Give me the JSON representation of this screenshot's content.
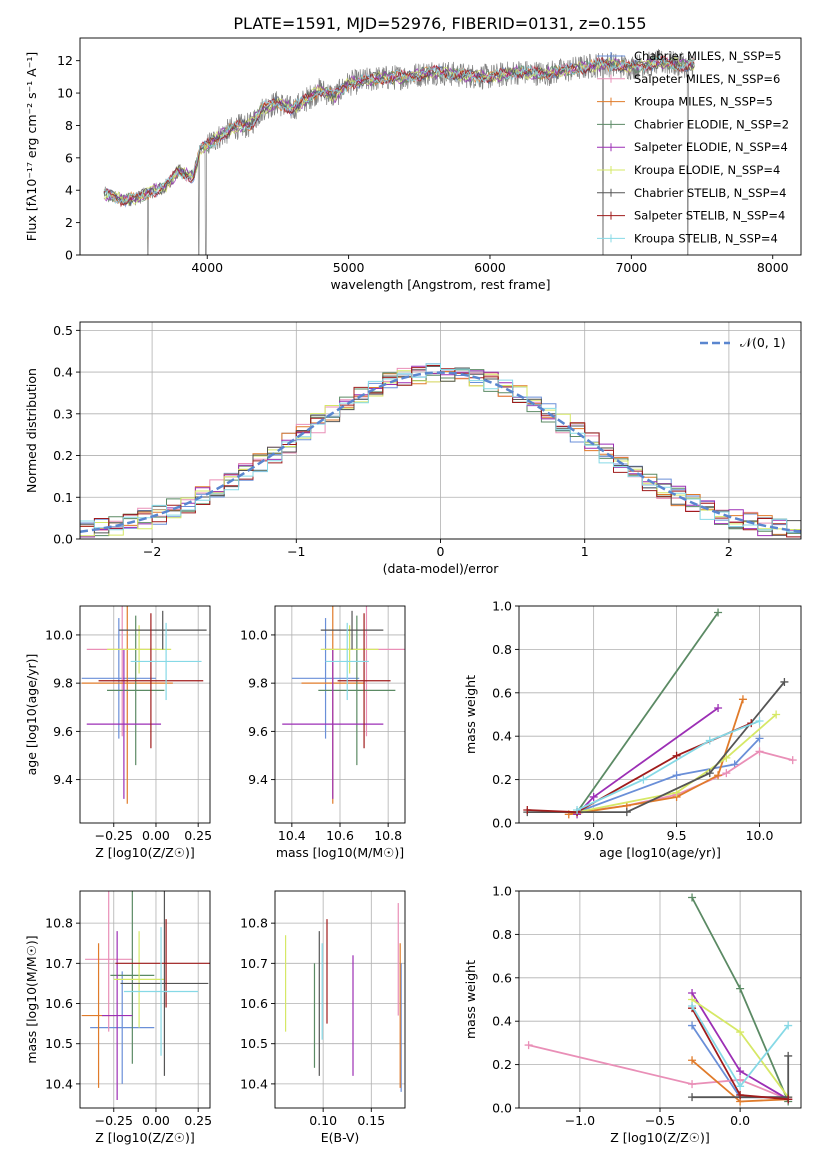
{
  "figure": {
    "title": "PLATE=1591, MJD=52976, FIBERID=0131, z=0.155"
  },
  "series_colors": [
    "#6a8fd8",
    "#e98fb7",
    "#e07b2a",
    "#5b8a64",
    "#9c2fb5",
    "#d6e866",
    "#555555",
    "#a01c1c",
    "#86d9e6"
  ],
  "chart_data": [
    {
      "id": "spectrum",
      "type": "line",
      "xlabel": "wavelength [Angstrom, rest frame]",
      "ylabel": "Flux [fλ10⁻¹⁷ erg cm⁻² s⁻¹ A⁻¹]",
      "xlim": [
        3100,
        8200
      ],
      "ylim": [
        0,
        13.4
      ],
      "xticks": [
        4000,
        5000,
        6000,
        7000,
        8000
      ],
      "yticks": [
        0,
        2,
        4,
        6,
        8,
        10,
        12
      ],
      "grid": false,
      "legend_position": "top-right",
      "data_color": "#808080",
      "data_x": [
        3270,
        3400,
        3500,
        3600,
        3700,
        3800,
        3900,
        3950,
        4000,
        4100,
        4200,
        4300,
        4400,
        4500,
        4600,
        4700,
        4800,
        4900,
        5000,
        5200,
        5400,
        5600,
        5800,
        6000,
        6200,
        6400,
        6600,
        6800,
        7000,
        7200,
        7400,
        7450
      ],
      "data_y": [
        3.8,
        3.4,
        3.5,
        3.9,
        4.2,
        5.2,
        4.8,
        6.5,
        6.8,
        7.4,
        7.9,
        8.0,
        9.1,
        9.4,
        9.0,
        9.6,
        10.2,
        9.8,
        10.6,
        10.9,
        11.0,
        11.3,
        11.1,
        11.0,
        11.3,
        11.2,
        11.5,
        11.8,
        11.6,
        11.9,
        11.7,
        11.8
      ],
      "series": [
        {
          "name": "Chabrier MILES, N_SSP=5"
        },
        {
          "name": "Salpeter MILES, N_SSP=6"
        },
        {
          "name": "Kroupa MILES, N_SSP=5"
        },
        {
          "name": "Chabrier ELODIE, N_SSP=2"
        },
        {
          "name": "Salpeter ELODIE, N_SSP=4"
        },
        {
          "name": "Kroupa ELODIE, N_SSP=4"
        },
        {
          "name": "Chabrier STELIB, N_SSP=4"
        },
        {
          "name": "Salpeter STELIB, N_SSP=4"
        },
        {
          "name": "Kroupa STELIB, N_SSP=4"
        }
      ]
    },
    {
      "id": "residual-histogram",
      "type": "bar",
      "xlabel": "(data-model)/error",
      "ylabel": "Normed distribution",
      "xlim": [
        -2.5,
        2.5
      ],
      "ylim": [
        0,
        0.52
      ],
      "xticks": [
        -2,
        -1,
        0,
        1,
        2
      ],
      "yticks": [
        0.0,
        0.1,
        0.2,
        0.3,
        0.4,
        0.5
      ],
      "grid": true,
      "legend_position": "top-right",
      "legend_label": "𝒩(0, 1)",
      "bin_width": 0.1,
      "bin_start": -2.5
    },
    {
      "id": "age-vs-Z",
      "type": "scatter",
      "xlabel": "Z [log10(Z/Z☉)]",
      "ylabel": "age  [log10(age/yr)]",
      "xlim": [
        -0.45,
        0.32
      ],
      "ylim": [
        9.22,
        10.12
      ],
      "xticks": [
        -0.25,
        0.0,
        0.25
      ],
      "yticks": [
        9.4,
        9.6,
        9.8,
        10.0
      ],
      "grid": true,
      "points": [
        {
          "x": -0.22,
          "y": 9.82,
          "xerr": 0.22,
          "yerr": 0.25
        },
        {
          "x": -0.2,
          "y": 9.94,
          "xerr": 0.21,
          "yerr": 0.36
        },
        {
          "x": -0.17,
          "y": 9.8,
          "xerr": 0.27,
          "yerr": 0.5
        },
        {
          "x": -0.12,
          "y": 9.77,
          "xerr": 0.17,
          "yerr": 0.31
        },
        {
          "x": -0.19,
          "y": 9.63,
          "xerr": 0.22,
          "yerr": 0.31
        },
        {
          "x": -0.1,
          "y": 9.94,
          "xerr": 0.19,
          "yerr": 0.1
        },
        {
          "x": 0.04,
          "y": 10.02,
          "xerr": 0.26,
          "yerr": 0.08
        },
        {
          "x": -0.03,
          "y": 9.81,
          "xerr": 0.31,
          "yerr": 0.28
        },
        {
          "x": 0.06,
          "y": 9.89,
          "xerr": 0.21,
          "yerr": 0.16
        }
      ]
    },
    {
      "id": "age-vs-mass",
      "type": "scatter",
      "xlabel": "mass [log10(M/M☉)]",
      "ylabel": "",
      "xlim": [
        10.33,
        10.87
      ],
      "ylim": [
        9.22,
        10.12
      ],
      "xticks": [
        10.4,
        10.6,
        10.8
      ],
      "yticks": [
        9.4,
        9.6,
        9.8,
        10.0
      ],
      "grid": true,
      "points": [
        {
          "x": 10.54,
          "y": 9.82,
          "xerr": 0.14,
          "yerr": 0.25
        },
        {
          "x": 10.71,
          "y": 9.94,
          "xerr": 0.18,
          "yerr": 0.36
        },
        {
          "x": 10.57,
          "y": 9.8,
          "xerr": 0.13,
          "yerr": 0.5
        },
        {
          "x": 10.67,
          "y": 9.77,
          "xerr": 0.16,
          "yerr": 0.31
        },
        {
          "x": 10.57,
          "y": 9.63,
          "xerr": 0.21,
          "yerr": 0.31
        },
        {
          "x": 10.64,
          "y": 9.94,
          "xerr": 0.12,
          "yerr": 0.1
        },
        {
          "x": 10.65,
          "y": 10.02,
          "xerr": 0.13,
          "yerr": 0.08
        },
        {
          "x": 10.7,
          "y": 9.81,
          "xerr": 0.11,
          "yerr": 0.28
        },
        {
          "x": 10.63,
          "y": 9.89,
          "xerr": 0.09,
          "yerr": 0.16
        }
      ]
    },
    {
      "id": "mass-weight-vs-age",
      "type": "line",
      "xlabel": "age  [log10(age/yr)]",
      "ylabel": "mass weight",
      "xlim": [
        8.55,
        10.25
      ],
      "ylim": [
        0,
        1.0
      ],
      "xticks": [
        9.0,
        9.5,
        10.0
      ],
      "yticks": [
        0.0,
        0.2,
        0.4,
        0.6,
        0.8,
        1.0
      ],
      "grid": true,
      "series": [
        {
          "x": [
            8.9,
            9.5,
            9.85,
            10.0
          ],
          "y": [
            0.05,
            0.22,
            0.27,
            0.39
          ]
        },
        {
          "x": [
            8.9,
            9.2,
            9.5,
            9.8,
            10.0,
            10.2
          ],
          "y": [
            0.05,
            0.08,
            0.13,
            0.23,
            0.33,
            0.29
          ]
        },
        {
          "x": [
            8.85,
            9.2,
            9.5,
            9.75,
            9.9
          ],
          "y": [
            0.04,
            0.08,
            0.12,
            0.22,
            0.57
          ]
        },
        {
          "x": [
            8.9,
            9.75
          ],
          "y": [
            0.05,
            0.97
          ]
        },
        {
          "x": [
            8.9,
            9.0,
            9.75
          ],
          "y": [
            0.04,
            0.12,
            0.53
          ]
        },
        {
          "x": [
            8.9,
            9.5,
            9.8,
            10.1
          ],
          "y": [
            0.05,
            0.14,
            0.3,
            0.5
          ]
        },
        {
          "x": [
            8.6,
            9.2,
            9.7,
            10.15
          ],
          "y": [
            0.05,
            0.05,
            0.23,
            0.65
          ]
        },
        {
          "x": [
            8.6,
            8.9,
            9.5,
            9.95
          ],
          "y": [
            0.06,
            0.05,
            0.31,
            0.46
          ]
        },
        {
          "x": [
            8.9,
            9.3,
            9.7,
            10.0
          ],
          "y": [
            0.06,
            0.2,
            0.38,
            0.47
          ]
        }
      ]
    },
    {
      "id": "mass-vs-Z",
      "type": "scatter",
      "xlabel": "Z [log10(Z/Z☉)]",
      "ylabel": "mass [log10(M/M☉)]",
      "xlim": [
        -0.45,
        0.32
      ],
      "ylim": [
        10.34,
        10.88
      ],
      "xticks": [
        -0.25,
        0.0,
        0.25
      ],
      "yticks": [
        10.4,
        10.5,
        10.6,
        10.7,
        10.8
      ],
      "grid": true,
      "points": [
        {
          "x": -0.2,
          "y": 10.54,
          "xerr": 0.19,
          "yerr": 0.14
        },
        {
          "x": -0.28,
          "y": 10.71,
          "xerr": 0.14,
          "yerr": 0.18
        },
        {
          "x": -0.34,
          "y": 10.57,
          "xerr": 0.1,
          "yerr": 0.18
        },
        {
          "x": -0.14,
          "y": 10.67,
          "xerr": 0.13,
          "yerr": 0.22
        },
        {
          "x": -0.23,
          "y": 10.57,
          "xerr": 0.09,
          "yerr": 0.21
        },
        {
          "x": -0.1,
          "y": 10.66,
          "xerr": 0.15,
          "yerr": 0.12
        },
        {
          "x": 0.05,
          "y": 10.65,
          "xerr": 0.26,
          "yerr": 0.23
        },
        {
          "x": 0.06,
          "y": 10.7,
          "xerr": 0.3,
          "yerr": 0.11
        },
        {
          "x": 0.03,
          "y": 10.63,
          "xerr": 0.22,
          "yerr": 0.16
        }
      ]
    },
    {
      "id": "mass-vs-EBV",
      "type": "scatter",
      "xlabel": "E(B-V)",
      "ylabel": "",
      "xlim": [
        0.05,
        0.185
      ],
      "ylim": [
        10.34,
        10.88
      ],
      "xticks": [
        0.1,
        0.15
      ],
      "yticks": [
        10.4,
        10.5,
        10.6,
        10.7,
        10.8
      ],
      "grid": true,
      "points": [
        {
          "x": 0.181,
          "y": 10.54,
          "yerr": 0.16
        },
        {
          "x": 0.178,
          "y": 10.71,
          "yerr": 0.14
        },
        {
          "x": 0.18,
          "y": 10.57,
          "yerr": 0.18
        },
        {
          "x": 0.091,
          "y": 10.57,
          "yerr": 0.13
        },
        {
          "x": 0.131,
          "y": 10.57,
          "yerr": 0.15
        },
        {
          "x": 0.061,
          "y": 10.65,
          "yerr": 0.12
        },
        {
          "x": 0.096,
          "y": 10.6,
          "yerr": 0.18
        },
        {
          "x": 0.104,
          "y": 10.68,
          "yerr": 0.13
        },
        {
          "x": 0.099,
          "y": 10.63,
          "yerr": 0.12
        }
      ]
    },
    {
      "id": "mass-weight-vs-Z",
      "type": "line",
      "xlabel": "Z [log10(Z/Z☉)]",
      "ylabel": "mass weight",
      "xlim": [
        -1.38,
        0.38
      ],
      "ylim": [
        0,
        1.0
      ],
      "xticks": [
        -1.0,
        -0.5,
        0.0
      ],
      "yticks": [
        0.0,
        0.2,
        0.4,
        0.6,
        0.8,
        1.0
      ],
      "grid": true,
      "series": [
        {
          "x": [
            -0.3,
            0.0,
            0.3
          ],
          "y": [
            0.38,
            0.05,
            0.05
          ]
        },
        {
          "x": [
            -1.32,
            -0.3,
            0.0,
            0.3
          ],
          "y": [
            0.29,
            0.11,
            0.13,
            0.04
          ]
        },
        {
          "x": [
            -0.3,
            0.0,
            0.3
          ],
          "y": [
            0.22,
            0.03,
            0.04
          ]
        },
        {
          "x": [
            -0.3,
            0.0,
            0.3
          ],
          "y": [
            0.97,
            0.55,
            0.03
          ]
        },
        {
          "x": [
            -0.3,
            0.0,
            0.3
          ],
          "y": [
            0.53,
            0.17,
            0.04
          ]
        },
        {
          "x": [
            -0.3,
            0.0,
            0.3
          ],
          "y": [
            0.5,
            0.35,
            0.05
          ]
        },
        {
          "x": [
            -0.3,
            0.3,
            0.3
          ],
          "y": [
            0.05,
            0.05,
            0.24
          ]
        },
        {
          "x": [
            -0.3,
            0.0,
            0.3
          ],
          "y": [
            0.46,
            0.06,
            0.04
          ]
        },
        {
          "x": [
            -0.3,
            0.0,
            0.3
          ],
          "y": [
            0.47,
            0.1,
            0.38
          ]
        }
      ]
    }
  ]
}
